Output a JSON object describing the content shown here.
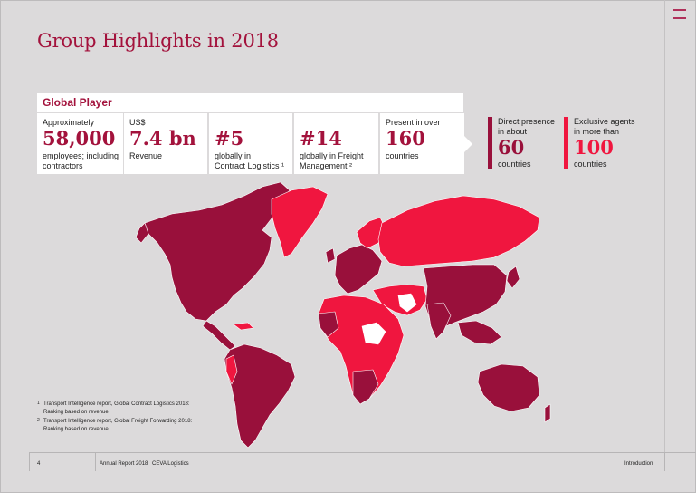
{
  "page": {
    "title": "Group Highlights in 2018",
    "menu_icon": "hamburger-menu-icon"
  },
  "global_player": {
    "header": "Global Player",
    "cards": [
      {
        "top": "Approximately",
        "value": "58,000",
        "bottom1": "employees; including",
        "bottom2": "contractors"
      },
      {
        "top": "US$",
        "value": "7.4 bn",
        "bottom1": "Revenue",
        "bottom2": ""
      },
      {
        "top": "",
        "value": "#5",
        "bottom1": "globally in",
        "bottom2": "Contract Logistics ¹"
      },
      {
        "top": "",
        "value": "#14",
        "bottom1": "globally in Freight",
        "bottom2": "Management ²"
      },
      {
        "top": "Present in over",
        "value": "160",
        "bottom1": "countries",
        "bottom2": ""
      }
    ]
  },
  "legend": {
    "direct": {
      "line1": "Direct presence",
      "line2": "in about",
      "value": "60",
      "bottom": "countries",
      "color": "#99103b"
    },
    "agents": {
      "line1": "Exclusive agents",
      "line2": "in more than",
      "value": "100",
      "bottom": "countries",
      "color": "#f0163f"
    }
  },
  "footnotes": [
    {
      "num": "1",
      "line1": "Transport Intelligence report, Global Contract Logistics 2018:",
      "line2": "Ranking based on revenue"
    },
    {
      "num": "2",
      "line1": "Transport Intelligence report, Global Freight Forwarding 2018:",
      "line2": "Ranking based on revenue"
    }
  ],
  "footer": {
    "page_number": "4",
    "report": "Annual Report 2018",
    "company": "CEVA Logistics",
    "section": "Introduction"
  },
  "colors": {
    "accent": "#a3123c",
    "direct": "#99103b",
    "agents": "#f0163f",
    "background": "#dcdadb"
  }
}
